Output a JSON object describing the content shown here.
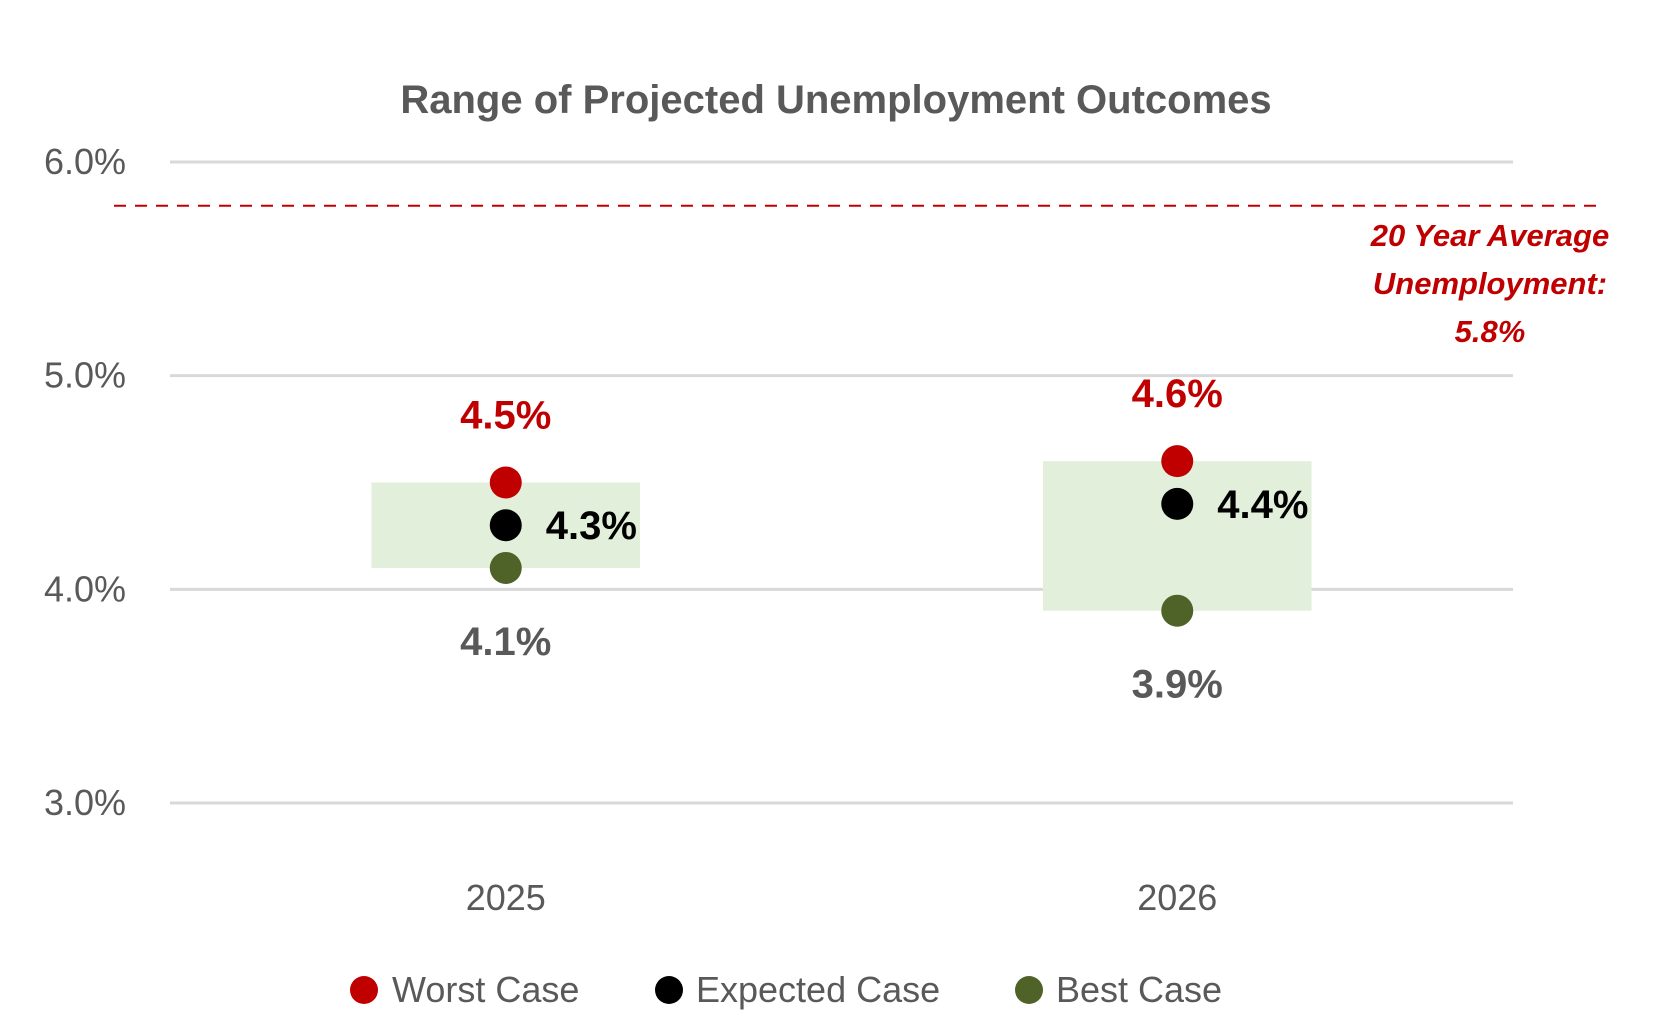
{
  "chart_data": {
    "type": "scatter",
    "title": "Range of Projected Unemployment Outcomes",
    "xlabel": "",
    "ylabel": "",
    "categories": [
      "2025",
      "2026"
    ],
    "ylim": [
      3.0,
      6.0
    ],
    "yticks": [
      3.0,
      4.0,
      5.0,
      6.0
    ],
    "ytick_labels": [
      "3.0%",
      "4.0%",
      "5.0%",
      "6.0%"
    ],
    "grid": true,
    "legend_position": "bottom",
    "series": [
      {
        "name": "Worst Case",
        "color": "#C00000",
        "values": [
          4.5,
          4.6
        ],
        "labels": [
          "4.5%",
          "4.6%"
        ],
        "label_position": "above",
        "label_color": "#C00000"
      },
      {
        "name": "Expected Case",
        "color": "#000000",
        "values": [
          4.3,
          4.4
        ],
        "labels": [
          "4.3%",
          "4.4%"
        ],
        "label_position": "right",
        "label_color": "#000000"
      },
      {
        "name": "Best Case",
        "color": "#4F6228",
        "values": [
          4.1,
          3.9
        ],
        "labels": [
          "4.1%",
          "3.9%"
        ],
        "label_position": "below",
        "label_color": "#595959"
      }
    ],
    "range_boxes": {
      "color": "#E2EFDA",
      "low": [
        4.1,
        3.9
      ],
      "high": [
        4.5,
        4.6
      ]
    },
    "reference_line": {
      "value": 5.8,
      "color": "#C00000",
      "style": "dashed",
      "annotation": [
        "20 Year Average",
        "Unemployment:",
        "5.8%"
      ]
    }
  }
}
